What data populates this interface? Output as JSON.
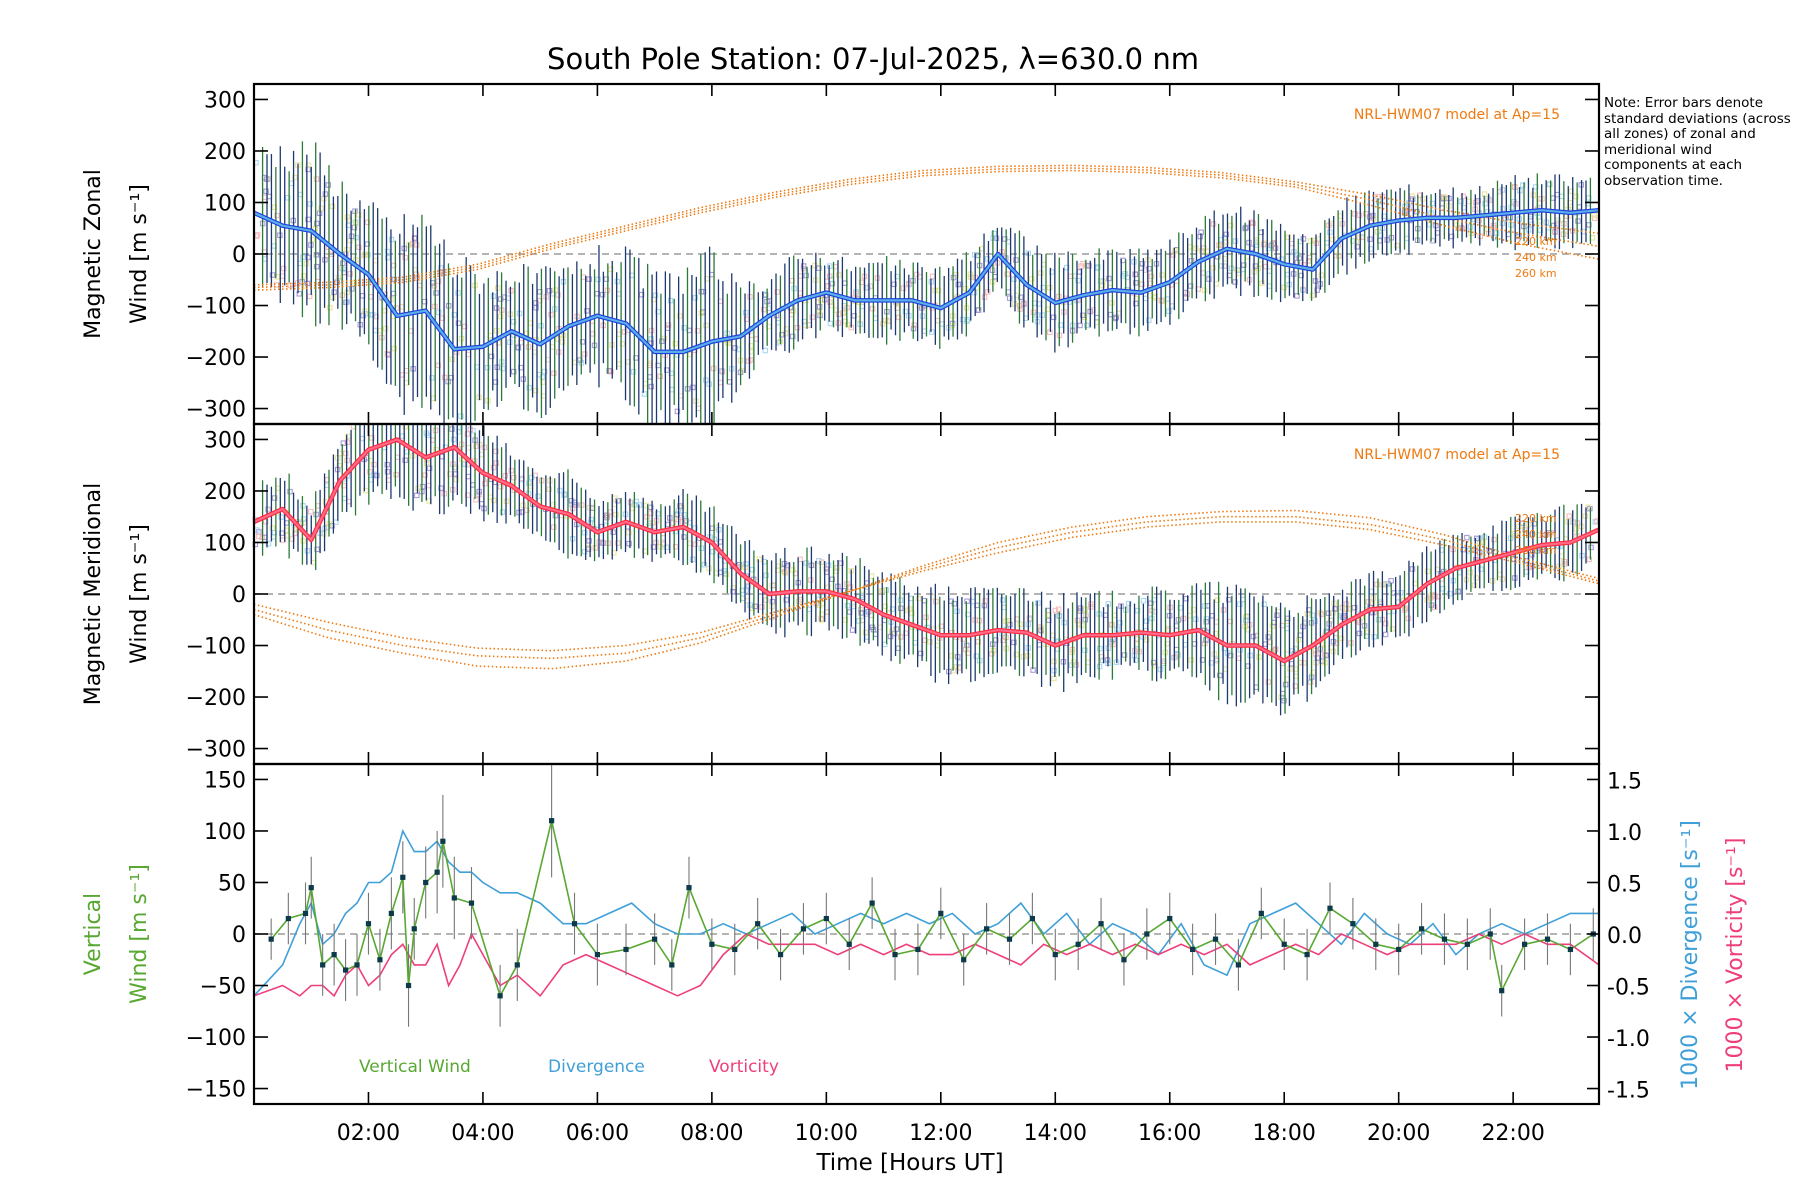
{
  "title": "South Pole Station: 07-Jul-2025, λ=630.0 nm",
  "note": "Note: Error bars denote standard deviations (across all zones) of zonal and meridional wind components at each observation time.",
  "xaxis": {
    "label": "Time [Hours UT]",
    "range_hours": [
      0,
      23.5
    ],
    "ticks": [
      "02:00",
      "04:00",
      "06:00",
      "08:00",
      "10:00",
      "12:00",
      "14:00",
      "16:00",
      "18:00",
      "20:00",
      "22:00"
    ],
    "tick_hours": [
      2,
      4,
      6,
      8,
      10,
      12,
      14,
      16,
      18,
      20,
      22
    ]
  },
  "colors": {
    "zonal": "#1f3fe0",
    "zonal_light": "#5ab0e6",
    "meridional": "#ff2a3c",
    "meridional_light": "#ff6a8a",
    "errorbar": "#1d3a6e",
    "errorbar_green": "#2a7a3a",
    "model": "#ee7a10",
    "vertical": "#58a832",
    "divergence": "#3f9fd8",
    "vorticity": "#ee3f7a",
    "zone_purple": "#9a8ad0",
    "zone_pink": "#f6b2b2",
    "zone_yellow": "#e8e08a",
    "zone_lightblue": "#9fd0f0",
    "zero": "#888888"
  },
  "chart_data": [
    {
      "panel": "zonal",
      "type": "line",
      "ylabel_line1": "Magnetic Zonal",
      "ylabel_line2": "Wind [m s⁻¹]",
      "ylim": [
        -330,
        330
      ],
      "yticks": [
        -300,
        -200,
        -100,
        0,
        100,
        200,
        300
      ],
      "model_label": "NRL-HWM07 model at Ap=15",
      "model_levels": [
        "220 km",
        "240 km",
        "260 km"
      ],
      "x": [
        0,
        0.5,
        1,
        1.5,
        2,
        2.5,
        3,
        3.5,
        4,
        4.5,
        5,
        5.5,
        6,
        6.5,
        7,
        7.5,
        8,
        8.5,
        9,
        9.5,
        10,
        10.5,
        11,
        11.5,
        12,
        12.5,
        13,
        13.5,
        14,
        14.5,
        15,
        15.5,
        16,
        16.5,
        17,
        17.5,
        18,
        18.5,
        19,
        19.5,
        20,
        20.5,
        21,
        21.5,
        22,
        22.5,
        23,
        23.5
      ],
      "mean": [
        80,
        55,
        45,
        0,
        -40,
        -120,
        -110,
        -185,
        -180,
        -150,
        -175,
        -140,
        -120,
        -135,
        -190,
        -190,
        -170,
        -160,
        -120,
        -90,
        -75,
        -90,
        -90,
        -90,
        -105,
        -75,
        0,
        -60,
        -95,
        -80,
        -70,
        -75,
        -55,
        -15,
        10,
        0,
        -20,
        -30,
        30,
        55,
        65,
        70,
        70,
        75,
        80,
        85,
        80,
        85
      ],
      "err": [
        120,
        140,
        150,
        130,
        120,
        160,
        170,
        160,
        130,
        110,
        120,
        100,
        110,
        120,
        130,
        140,
        150,
        80,
        70,
        80,
        70,
        60,
        70,
        60,
        70,
        70,
        60,
        80,
        80,
        70,
        70,
        70,
        70,
        70,
        70,
        70,
        70,
        60,
        60,
        60,
        60,
        50,
        50,
        50,
        60,
        60,
        60,
        60
      ],
      "model": [
        {
          "level": "220 km",
          "values": [
            -60,
            -55,
            -45,
            -20,
            20,
            55,
            90,
            120,
            145,
            162,
            170,
            172,
            168,
            158,
            140,
            115,
            85,
            60,
            40
          ]
        },
        {
          "level": "240 km",
          "values": [
            -65,
            -60,
            -50,
            -25,
            15,
            50,
            85,
            115,
            140,
            157,
            165,
            167,
            163,
            153,
            135,
            105,
            70,
            40,
            15
          ]
        },
        {
          "level": "260 km",
          "values": [
            -70,
            -65,
            -55,
            -30,
            10,
            45,
            80,
            110,
            135,
            152,
            160,
            162,
            158,
            148,
            130,
            95,
            55,
            20,
            -10
          ]
        }
      ],
      "model_x": [
        0,
        1.3,
        2.6,
        3.9,
        5.2,
        6.5,
        7.8,
        9.1,
        10.4,
        11.7,
        13,
        14.3,
        15.6,
        16.9,
        18.2,
        19.5,
        20.8,
        22.1,
        23.5
      ]
    },
    {
      "panel": "meridional",
      "type": "line",
      "ylabel_line1": "Magnetic Meridional",
      "ylabel_line2": "Wind [m s⁻¹]",
      "ylim": [
        -330,
        330
      ],
      "yticks": [
        -300,
        -200,
        -100,
        0,
        100,
        200,
        300
      ],
      "model_label": "NRL-HWM07 model at Ap=15",
      "model_levels": [
        "220 km",
        "240 km",
        "260 km"
      ],
      "x": [
        0,
        0.5,
        1,
        1.5,
        2,
        2.5,
        3,
        3.5,
        4,
        4.5,
        5,
        5.5,
        6,
        6.5,
        7,
        7.5,
        8,
        8.5,
        9,
        9.5,
        10,
        10.5,
        11,
        11.5,
        12,
        12.5,
        13,
        13.5,
        14,
        14.5,
        15,
        15.5,
        16,
        16.5,
        17,
        17.5,
        18,
        18.5,
        19,
        19.5,
        20,
        20.5,
        21,
        21.5,
        22,
        22.5,
        23,
        23.5
      ],
      "mean": [
        140,
        165,
        105,
        220,
        280,
        300,
        265,
        285,
        235,
        210,
        170,
        155,
        120,
        140,
        120,
        130,
        100,
        40,
        0,
        5,
        5,
        -10,
        -40,
        -60,
        -80,
        -80,
        -70,
        -75,
        -100,
        -80,
        -80,
        -75,
        -80,
        -70,
        -100,
        -100,
        -130,
        -100,
        -60,
        -30,
        -25,
        20,
        50,
        65,
        80,
        95,
        100,
        125
      ],
      "err": [
        60,
        70,
        60,
        80,
        90,
        90,
        100,
        100,
        80,
        60,
        60,
        70,
        60,
        60,
        50,
        60,
        60,
        60,
        70,
        70,
        70,
        70,
        70,
        70,
        80,
        80,
        70,
        80,
        80,
        70,
        70,
        70,
        80,
        80,
        100,
        100,
        100,
        80,
        60,
        60,
        60,
        60,
        60,
        60,
        60,
        60,
        60,
        60
      ],
      "model": [
        {
          "level": "220 km",
          "values": [
            -20,
            -55,
            -85,
            -105,
            -110,
            -100,
            -75,
            -35,
            5,
            45,
            80,
            110,
            130,
            140,
            140,
            125,
            95,
            60,
            20
          ]
        },
        {
          "level": "240 km",
          "values": [
            -30,
            -70,
            -100,
            -120,
            -125,
            -115,
            -85,
            -40,
            5,
            50,
            90,
            120,
            140,
            150,
            150,
            135,
            105,
            65,
            25
          ]
        },
        {
          "level": "260 km",
          "values": [
            -40,
            -85,
            -115,
            -140,
            -145,
            -130,
            -95,
            -45,
            5,
            55,
            100,
            130,
            150,
            160,
            162,
            148,
            115,
            70,
            30
          ]
        }
      ],
      "model_x": [
        0,
        1.3,
        2.6,
        3.9,
        5.2,
        6.5,
        7.8,
        9.1,
        10.4,
        11.7,
        13,
        14.3,
        15.6,
        16.9,
        18.2,
        19.5,
        20.8,
        22.1,
        23.5
      ]
    },
    {
      "panel": "vertical",
      "type": "line",
      "ylabel_line1": "Vertical",
      "ylabel_line2": "Wind [m s⁻¹]",
      "ylim": [
        -165,
        165
      ],
      "yticks": [
        -150,
        -100,
        -50,
        0,
        50,
        100,
        150
      ],
      "right_axis1_label": "1000 × Divergence [s⁻¹]",
      "right_axis2_label": "1000 × Vorticity [s⁻¹]",
      "right_ylim": [
        -1.65,
        1.65
      ],
      "right_ticks": [
        "-1.5",
        "-1.0",
        "-0.5",
        "0.0",
        "0.5",
        "1.0",
        "1.5"
      ],
      "right_tick_values": [
        -1.5,
        -1.0,
        -0.5,
        0.0,
        0.5,
        1.0,
        1.5
      ],
      "legend": [
        "Vertical Wind",
        "Divergence",
        "Vorticity"
      ],
      "vertical_x": [
        0.3,
        0.6,
        0.9,
        1.0,
        1.2,
        1.4,
        1.6,
        1.8,
        2.0,
        2.2,
        2.4,
        2.6,
        2.7,
        2.8,
        3.0,
        3.2,
        3.3,
        3.5,
        3.8,
        4.3,
        4.6,
        5.2,
        5.6,
        6.0,
        6.5,
        7.0,
        7.3,
        7.6,
        8.0,
        8.4,
        8.8,
        9.2,
        9.6,
        10.0,
        10.4,
        10.8,
        11.2,
        11.6,
        12.0,
        12.4,
        12.8,
        13.2,
        13.6,
        14.0,
        14.4,
        14.8,
        15.2,
        15.6,
        16.0,
        16.4,
        16.8,
        17.2,
        17.6,
        18.0,
        18.4,
        18.8,
        19.2,
        19.6,
        20.0,
        20.4,
        20.8,
        21.2,
        21.6,
        21.8,
        22.2,
        22.6,
        23.0,
        23.4
      ],
      "vertical": [
        -5,
        15,
        20,
        45,
        -30,
        -20,
        -35,
        -30,
        10,
        -25,
        20,
        55,
        -50,
        5,
        50,
        60,
        90,
        35,
        30,
        -60,
        -30,
        110,
        10,
        -20,
        -15,
        -5,
        -30,
        45,
        -10,
        -15,
        10,
        -20,
        5,
        15,
        -10,
        30,
        -20,
        -15,
        20,
        -25,
        5,
        -5,
        15,
        -20,
        -10,
        10,
        -25,
        0,
        15,
        -15,
        -5,
        -30,
        20,
        -10,
        -20,
        25,
        10,
        -10,
        -15,
        5,
        -5,
        -10,
        0,
        -55,
        -10,
        -5,
        -15,
        0
      ],
      "vertical_err": [
        20,
        25,
        30,
        30,
        30,
        30,
        30,
        30,
        30,
        30,
        35,
        35,
        40,
        30,
        35,
        40,
        45,
        40,
        35,
        30,
        35,
        55,
        30,
        30,
        25,
        25,
        25,
        30,
        25,
        25,
        25,
        25,
        25,
        25,
        25,
        25,
        25,
        25,
        25,
        25,
        25,
        25,
        25,
        25,
        25,
        25,
        25,
        25,
        25,
        25,
        25,
        25,
        25,
        25,
        25,
        25,
        25,
        25,
        25,
        25,
        25,
        25,
        25,
        25,
        25,
        25,
        25,
        25
      ],
      "div_x": [
        0,
        0.5,
        0.8,
        1.0,
        1.2,
        1.4,
        1.6,
        1.8,
        2.0,
        2.2,
        2.4,
        2.6,
        2.8,
        3.0,
        3.2,
        3.4,
        3.6,
        3.8,
        4.0,
        4.3,
        4.6,
        5.0,
        5.4,
        5.8,
        6.2,
        6.6,
        7.0,
        7.4,
        7.8,
        8.2,
        8.6,
        9.0,
        9.4,
        9.8,
        10.2,
        10.6,
        11.0,
        11.4,
        11.8,
        12.2,
        12.6,
        13.0,
        13.4,
        13.8,
        14.2,
        14.6,
        15.0,
        15.4,
        15.8,
        16.2,
        16.6,
        17.0,
        17.4,
        17.8,
        18.2,
        18.6,
        19.0,
        19.4,
        19.8,
        20.2,
        20.6,
        21.0,
        21.4,
        21.8,
        22.2,
        22.6,
        23.0,
        23.5
      ],
      "divergence": [
        -0.6,
        -0.3,
        0.1,
        0.3,
        -0.1,
        0.0,
        0.2,
        0.3,
        0.5,
        0.5,
        0.6,
        1.0,
        0.8,
        0.8,
        0.9,
        0.7,
        0.6,
        0.6,
        0.5,
        0.4,
        0.4,
        0.3,
        0.1,
        0.1,
        0.2,
        0.3,
        0.1,
        0.0,
        0.0,
        0.1,
        0.0,
        0.1,
        0.2,
        0.0,
        0.1,
        0.2,
        0.1,
        0.2,
        0.1,
        0.2,
        0.0,
        0.1,
        0.3,
        0.0,
        0.2,
        -0.1,
        0.1,
        0.0,
        -0.2,
        0.1,
        -0.3,
        -0.4,
        0.1,
        0.2,
        0.3,
        0.1,
        -0.1,
        0.2,
        0.0,
        -0.1,
        0.1,
        -0.2,
        0.0,
        0.1,
        0.0,
        0.1,
        0.2,
        0.2
      ],
      "vor_x": [
        0,
        0.5,
        0.8,
        1.0,
        1.2,
        1.4,
        1.6,
        1.8,
        2.0,
        2.2,
        2.4,
        2.6,
        2.8,
        3.0,
        3.2,
        3.4,
        3.6,
        3.8,
        4.0,
        4.3,
        4.6,
        5.0,
        5.4,
        5.8,
        6.2,
        6.6,
        7.0,
        7.4,
        7.8,
        8.2,
        8.6,
        9.0,
        9.4,
        9.8,
        10.2,
        10.6,
        11.0,
        11.4,
        11.8,
        12.2,
        12.6,
        13.0,
        13.4,
        13.8,
        14.2,
        14.6,
        15.0,
        15.4,
        15.8,
        16.2,
        16.6,
        17.0,
        17.4,
        17.8,
        18.2,
        18.6,
        19.0,
        19.4,
        19.8,
        20.2,
        20.6,
        21.0,
        21.4,
        21.8,
        22.2,
        22.6,
        23.0,
        23.5
      ],
      "vorticity": [
        -0.6,
        -0.5,
        -0.6,
        -0.5,
        -0.5,
        -0.6,
        -0.4,
        -0.3,
        -0.5,
        -0.4,
        -0.2,
        -0.1,
        -0.3,
        -0.3,
        -0.1,
        -0.5,
        -0.3,
        0.0,
        -0.2,
        -0.5,
        -0.4,
        -0.6,
        -0.3,
        -0.2,
        -0.3,
        -0.4,
        -0.5,
        -0.6,
        -0.5,
        -0.2,
        0.0,
        -0.1,
        -0.1,
        -0.1,
        -0.2,
        -0.1,
        -0.2,
        -0.1,
        -0.2,
        -0.2,
        -0.1,
        -0.2,
        -0.3,
        -0.1,
        -0.2,
        -0.1,
        -0.2,
        -0.1,
        -0.2,
        -0.1,
        -0.2,
        -0.1,
        -0.3,
        -0.2,
        -0.1,
        -0.2,
        0.0,
        -0.1,
        -0.2,
        -0.1,
        -0.1,
        -0.1,
        0.0,
        -0.1,
        0.0,
        -0.1,
        -0.1,
        -0.3
      ]
    }
  ]
}
